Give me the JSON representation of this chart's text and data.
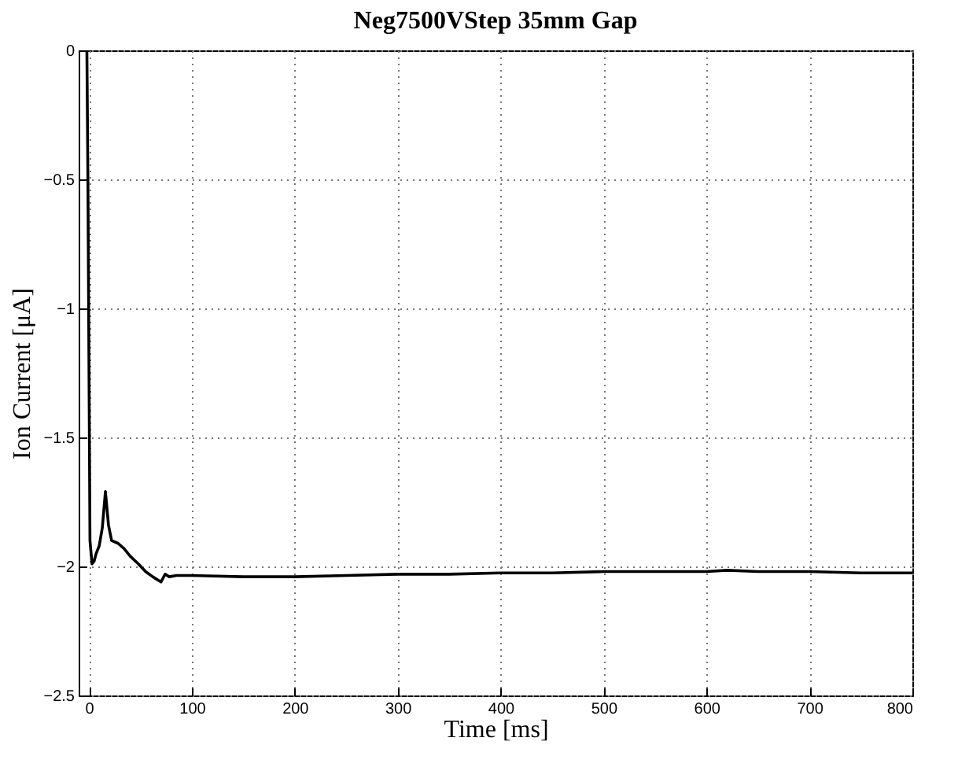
{
  "chart_data": {
    "type": "line",
    "title": "Neg7500VStep 35mm Gap",
    "xlabel": "Time [ms]",
    "ylabel": "Ion Current [μA]",
    "x": [
      -10,
      -2,
      -1,
      1,
      3,
      5,
      7,
      10,
      13,
      16,
      19,
      22,
      28,
      34,
      40,
      48,
      55,
      62,
      70,
      74,
      78,
      85,
      100,
      150,
      200,
      250,
      300,
      350,
      400,
      450,
      500,
      550,
      600,
      620,
      650,
      700,
      750,
      800
    ],
    "series": [
      {
        "color": "#000000",
        "values": [
          0,
          0,
          -0.5,
          -1.9,
          -1.99,
          -1.98,
          -1.95,
          -1.92,
          -1.85,
          -1.71,
          -1.84,
          -1.9,
          -1.91,
          -1.93,
          -1.96,
          -1.99,
          -2.02,
          -2.04,
          -2.06,
          -2.03,
          -2.04,
          -2.035,
          -2.035,
          -2.04,
          -2.04,
          -2.035,
          -2.03,
          -2.03,
          -2.025,
          -2.025,
          -2.02,
          -2.02,
          -2.02,
          -2.015,
          -2.02,
          -2.02,
          -2.025,
          -2.025
        ]
      }
    ],
    "xlim": [
      -10,
      800
    ],
    "xticks": [
      0,
      100,
      200,
      300,
      400,
      500,
      600,
      700,
      800
    ],
    "ylim": [
      -2.5,
      0
    ],
    "yticks": [
      -2.5,
      -2,
      -1.5,
      -1,
      -0.5,
      0
    ],
    "grid": true,
    "marker": "none",
    "line_style": "solid"
  }
}
